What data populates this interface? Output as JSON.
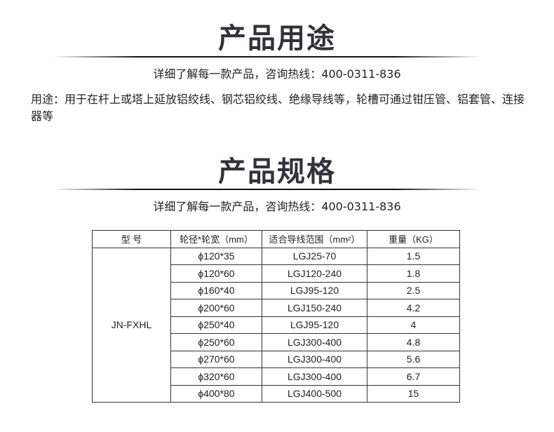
{
  "usage_section": {
    "title": "产品用途",
    "hotline": "详细了解每一款产品，咨询热线：400-0311-836",
    "description": "用途：用于在杆上或塔上延放铝绞线、钢芯铝绞线、绝缘导线等，轮槽可通过钳压管、铝套管、连接器等"
  },
  "spec_section": {
    "title": "产品规格",
    "hotline": "详细了解每一款产品，咨询热线：400-0311-836"
  },
  "table": {
    "headers": [
      "型  号",
      "轮径*轮宽（mm）",
      "适合导线范围（mm²）",
      "重量（KG）"
    ],
    "model": "JN-FXHL",
    "rows": [
      {
        "size": "ϕ120*35",
        "conductor": "LGJ25-70",
        "weight": "1.5"
      },
      {
        "size": "ϕ120*60",
        "conductor": "LGJ120-240",
        "weight": "1.8"
      },
      {
        "size": "ϕ160*40",
        "conductor": "LGJ95-120",
        "weight": "2.5"
      },
      {
        "size": "ϕ200*60",
        "conductor": "LGJ150-240",
        "weight": "4.2"
      },
      {
        "size": "ϕ250*40",
        "conductor": "LGJ95-120",
        "weight": "4"
      },
      {
        "size": "ϕ250*60",
        "conductor": "LGJ300-400",
        "weight": "4.8"
      },
      {
        "size": "ϕ270*60",
        "conductor": "LGJ300-400",
        "weight": "5.6"
      },
      {
        "size": "ϕ320*60",
        "conductor": "LGJ300-400",
        "weight": "6.7"
      },
      {
        "size": "ϕ400*80",
        "conductor": "LGJ400-500",
        "weight": "15"
      }
    ]
  }
}
